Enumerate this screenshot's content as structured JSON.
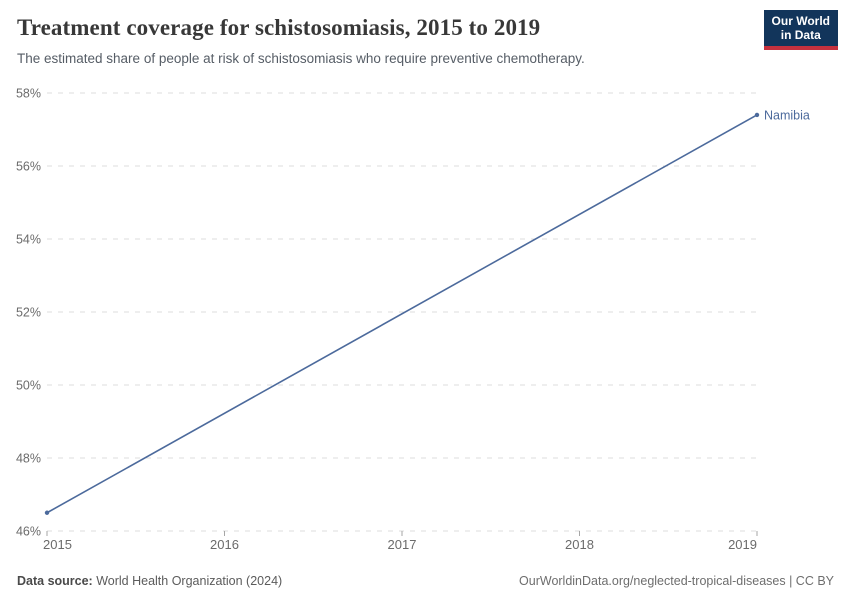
{
  "header": {
    "title": "Treatment coverage for schistosomiasis, 2015 to 2019",
    "subtitle": "The estimated share of people at risk of schistosomiasis who require preventive chemotherapy.",
    "logo": {
      "line1": "Our World",
      "line2": "in Data",
      "bg_color": "#12355b",
      "accent_color": "#c5313e"
    }
  },
  "chart_data": {
    "type": "line",
    "title": "Treatment coverage for schistosomiasis, 2015 to 2019",
    "xlabel": "",
    "ylabel": "",
    "x_ticks": [
      2015,
      2016,
      2017,
      2018,
      2019
    ],
    "y_ticks": [
      46,
      48,
      50,
      52,
      54,
      56,
      58
    ],
    "y_tick_suffix": "%",
    "xlim": [
      2015,
      2019
    ],
    "ylim": [
      46,
      58
    ],
    "grid": "horizontal-dashed",
    "gridline_color": "#dcdcdc",
    "tick_label_color": "#6b6b6b",
    "legend_position": "end-of-line-label",
    "series": [
      {
        "name": "Namibia",
        "color": "#4C6A9C",
        "points": [
          {
            "x": 2015,
            "y": 46.5
          },
          {
            "x": 2019,
            "y": 57.4
          }
        ]
      }
    ]
  },
  "footer": {
    "datasource_label": "Data source:",
    "datasource_value": "World Health Organization (2024)",
    "credit": "OurWorldinData.org/neglected-tropical-diseases | CC BY"
  }
}
